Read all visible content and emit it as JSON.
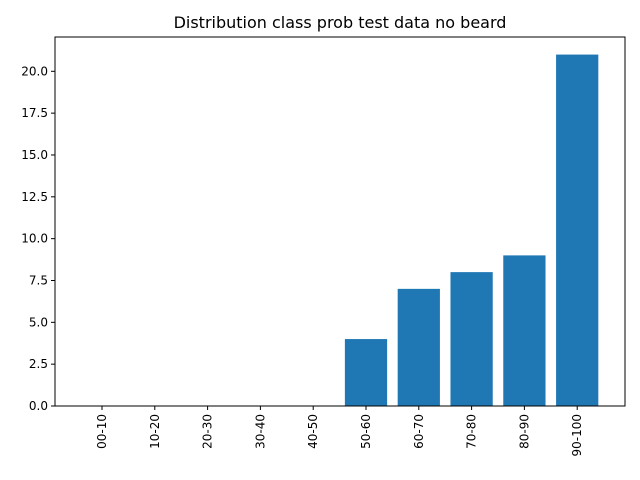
{
  "chart_data": {
    "type": "bar",
    "title": "Distribution class prob test data no beard",
    "xlabel": "",
    "ylabel": "",
    "categories": [
      "00-10",
      "10-20",
      "20-30",
      "30-40",
      "40-50",
      "50-60",
      "60-70",
      "70-80",
      "80-90",
      "90-100"
    ],
    "values": [
      0,
      0,
      0,
      0,
      0,
      4,
      7,
      8,
      9,
      21
    ],
    "ylim": [
      0,
      22.05
    ],
    "yticks": [
      0.0,
      2.5,
      5.0,
      7.5,
      10.0,
      12.5,
      15.0,
      17.5,
      20.0
    ],
    "ytick_labels": [
      "0.0",
      "2.5",
      "5.0",
      "7.5",
      "10.0",
      "12.5",
      "15.0",
      "17.5",
      "20.0"
    ],
    "bar_color": "#1f77b4",
    "grid": false,
    "legend": "none",
    "xtick_rotation": "vertical"
  }
}
